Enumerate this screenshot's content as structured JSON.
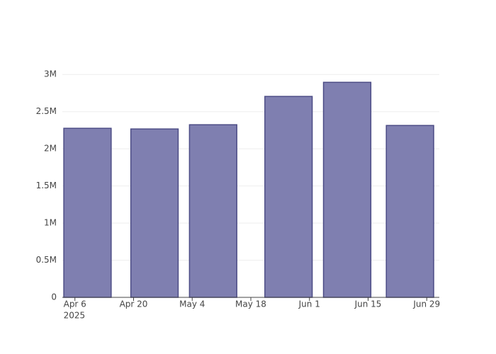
{
  "chart_data": {
    "type": "bar",
    "x": [
      "2025-04-09",
      "2025-04-25",
      "2025-05-09",
      "2025-05-27",
      "2025-06-10",
      "2025-06-25"
    ],
    "values": [
      2276000,
      2267000,
      2324000,
      2705000,
      2895000,
      2314000
    ],
    "color": "#7f7fb0",
    "edge_color": "#4d4d86",
    "xlim": [
      "2025-04-03",
      "2025-07-02"
    ],
    "xticks": [
      {
        "value": "2025-04-06",
        "label": "Apr 6"
      },
      {
        "value": "2025-04-20",
        "label": "Apr 20"
      },
      {
        "value": "2025-05-04",
        "label": "May 4"
      },
      {
        "value": "2025-05-18",
        "label": "May 18"
      },
      {
        "value": "2025-06-01",
        "label": "Jun 1"
      },
      {
        "value": "2025-06-15",
        "label": "Jun 15"
      },
      {
        "value": "2025-06-29",
        "label": "Jun 29"
      }
    ],
    "x_year": "2025",
    "ylim": [
      0,
      3050000
    ],
    "yticks": [
      0,
      {
        "value": 500000,
        "label": "0.5M"
      },
      {
        "value": 1000000,
        "label": "1M"
      },
      {
        "value": 1500000,
        "label": "1.5M"
      },
      {
        "value": 2000000,
        "label": "2M"
      },
      {
        "value": 2500000,
        "label": "2.5M"
      },
      {
        "value": 3000000,
        "label": "3M"
      }
    ],
    "grid": true
  }
}
